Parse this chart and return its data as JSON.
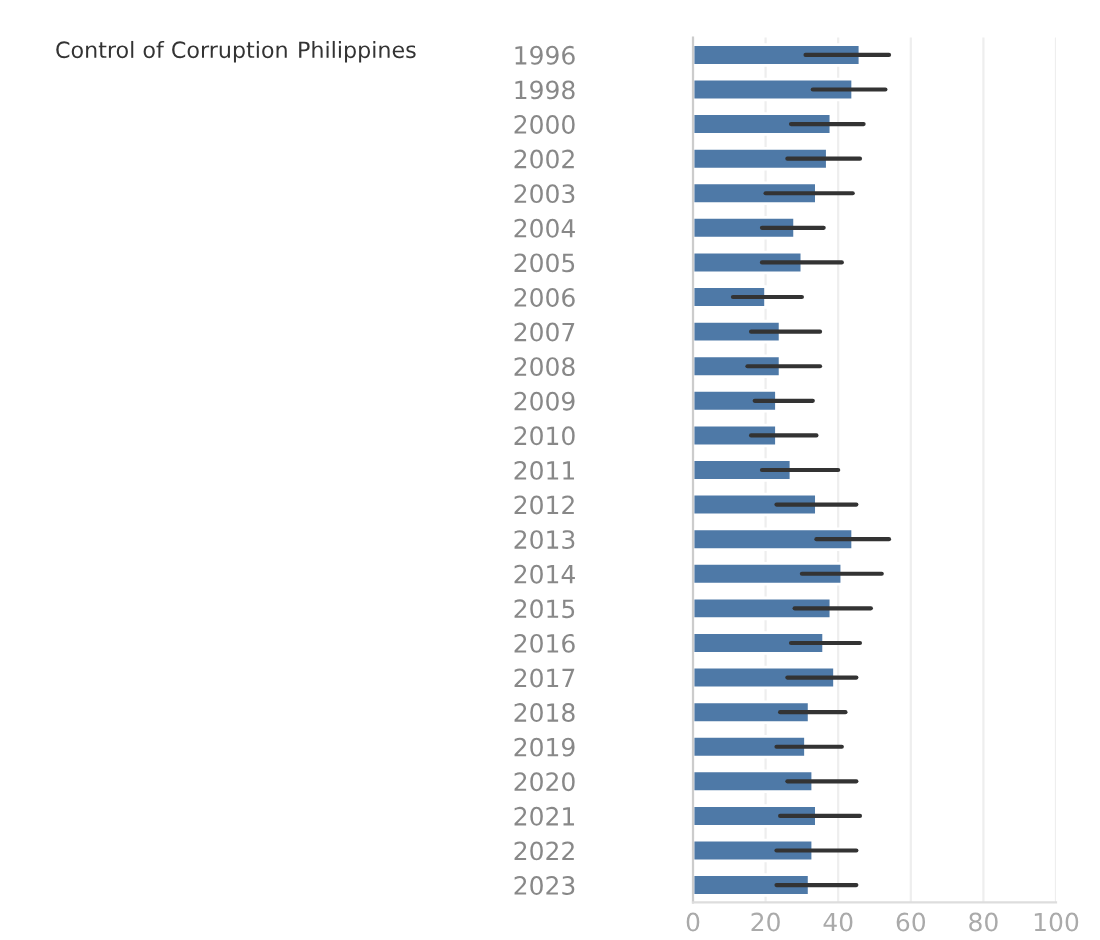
{
  "chart_data": {
    "type": "bar",
    "orientation": "horizontal",
    "annotations": [
      "Control of Corruption",
      "Philippines"
    ],
    "categories": [
      "1996",
      "1998",
      "2000",
      "2002",
      "2003",
      "2004",
      "2005",
      "2006",
      "2007",
      "2008",
      "2009",
      "2010",
      "2011",
      "2012",
      "2013",
      "2014",
      "2015",
      "2016",
      "2017",
      "2018",
      "2019",
      "2020",
      "2021",
      "2022",
      "2023"
    ],
    "values": [
      46,
      44,
      38,
      37,
      34,
      28,
      30,
      20,
      24,
      24,
      23,
      23,
      27,
      34,
      44,
      41,
      38,
      36,
      39,
      32,
      31,
      33,
      34,
      33,
      32
    ],
    "errors": [
      [
        31,
        54
      ],
      [
        33,
        53
      ],
      [
        27,
        47
      ],
      [
        26,
        46
      ],
      [
        20,
        44
      ],
      [
        19,
        36
      ],
      [
        19,
        41
      ],
      [
        11,
        30
      ],
      [
        16,
        35
      ],
      [
        15,
        35
      ],
      [
        17,
        33
      ],
      [
        16,
        34
      ],
      [
        19,
        40
      ],
      [
        23,
        45
      ],
      [
        34,
        54
      ],
      [
        30,
        52
      ],
      [
        28,
        49
      ],
      [
        27,
        46
      ],
      [
        26,
        45
      ],
      [
        24,
        42
      ],
      [
        23,
        41
      ],
      [
        26,
        45
      ],
      [
        24,
        46
      ],
      [
        23,
        45
      ],
      [
        23,
        45
      ]
    ],
    "color": "#4e79a7",
    "xlim": [
      0,
      100
    ],
    "xticks": [
      0,
      20,
      40,
      60,
      80,
      100
    ],
    "grid": "x",
    "legend": false
  }
}
